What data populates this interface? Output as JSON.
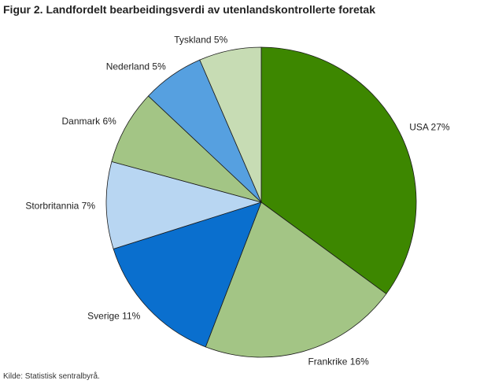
{
  "chart_data": {
    "type": "pie",
    "title": "Figur 2. Landfordelt bearbeidingsverdi av utenlandskontrollerte foretak",
    "source": "Kilde: Statistisk sentralbyrå.",
    "start": "top",
    "direction": "clockwise",
    "slices": [
      {
        "label": "USA 27%",
        "value": 27,
        "color": "#3d8700"
      },
      {
        "label": "Frankrike 16%",
        "value": 16,
        "color": "#a3c585"
      },
      {
        "label": "Sverige 11%",
        "value": 11,
        "color": "#0a6fce"
      },
      {
        "label": "Storbritannia 7%",
        "value": 7,
        "color": "#b8d6f2"
      },
      {
        "label": "Danmark 6%",
        "value": 6,
        "color": "#a3c585"
      },
      {
        "label": "Nederland 5%",
        "value": 5,
        "color": "#56a0e0"
      },
      {
        "label": "Tyskland 5%",
        "value": 5,
        "color": "#c7dcb4"
      }
    ]
  }
}
